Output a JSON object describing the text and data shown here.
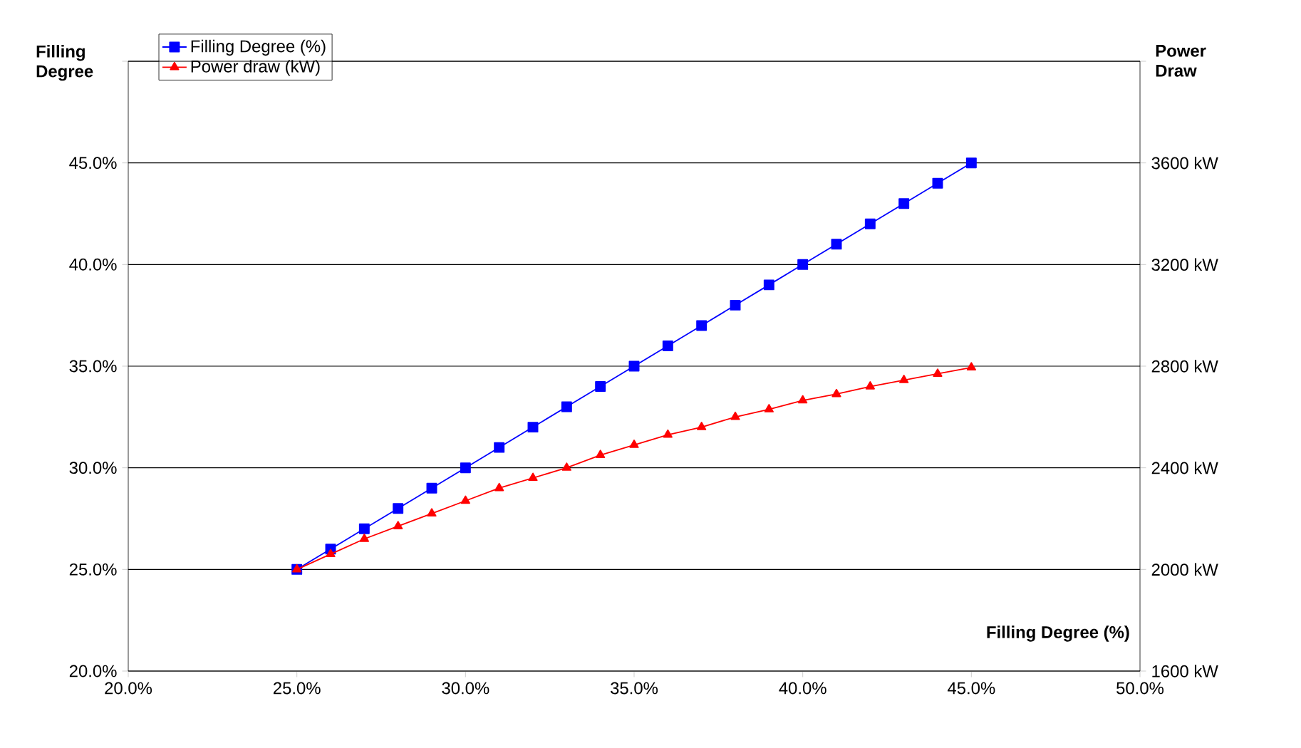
{
  "chart_data": {
    "type": "line",
    "xlabel": "Filling Degree (%)",
    "ylabel": "Filling Degree",
    "y2label": "Power Draw",
    "series": [
      {
        "name": "Filling Degree (%)",
        "color": "#0000ff",
        "marker": "square",
        "x": [
          25,
          26,
          27,
          28,
          29,
          30,
          31,
          32,
          33,
          34,
          35,
          36,
          37,
          38,
          39,
          40,
          41,
          42,
          43,
          44,
          45
        ],
        "values": [
          25,
          26,
          27,
          28,
          29,
          30,
          31,
          32,
          33,
          34,
          35,
          36,
          37,
          38,
          39,
          40,
          41,
          42,
          43,
          44,
          45
        ]
      },
      {
        "name": "Power draw (kW)",
        "color": "#ff0000",
        "marker": "triangle",
        "axis": "y2",
        "x": [
          25,
          26,
          27,
          28,
          29,
          30,
          31,
          32,
          33,
          34,
          35,
          36,
          37,
          38,
          39,
          40,
          41,
          42,
          43,
          44,
          45
        ],
        "values": [
          2000,
          2060,
          2120,
          2170,
          2220,
          2270,
          2320,
          2360,
          2400,
          2450,
          2490,
          2530,
          2560,
          2600,
          2630,
          2665,
          2690,
          2720,
          2745,
          2770,
          2795
        ]
      }
    ],
    "xlim": [
      20,
      50
    ],
    "xticks": [
      {
        "value": 20,
        "label": "20.0%"
      },
      {
        "value": 25,
        "label": "25.0%"
      },
      {
        "value": 30,
        "label": "30.0%"
      },
      {
        "value": 35,
        "label": "35.0%"
      },
      {
        "value": 40,
        "label": "40.0%"
      },
      {
        "value": 45,
        "label": "45.0%"
      },
      {
        "value": 50,
        "label": "50.0%"
      }
    ],
    "ylim": [
      20,
      50
    ],
    "yticks": [
      {
        "value": 20,
        "label": "20.0%"
      },
      {
        "value": 25,
        "label": "25.0%"
      },
      {
        "value": 30,
        "label": "30.0%"
      },
      {
        "value": 35,
        "label": "35.0%"
      },
      {
        "value": 40,
        "label": "40.0%"
      },
      {
        "value": 45,
        "label": "45.0%"
      },
      {
        "value": 50,
        "label": null
      }
    ],
    "y2lim": [
      1600,
      4000
    ],
    "y2ticks": [
      {
        "value": 1600,
        "label": "1600 kW"
      },
      {
        "value": 2000,
        "label": "2000 kW"
      },
      {
        "value": 2400,
        "label": "2400 kW"
      },
      {
        "value": 2800,
        "label": "2800 kW"
      },
      {
        "value": 3200,
        "label": "3200 kW"
      },
      {
        "value": 3600,
        "label": "3600 kW"
      },
      {
        "value": 4000,
        "label": null
      }
    ],
    "grid": "y",
    "legend": "top left",
    "line_style": "solid"
  }
}
